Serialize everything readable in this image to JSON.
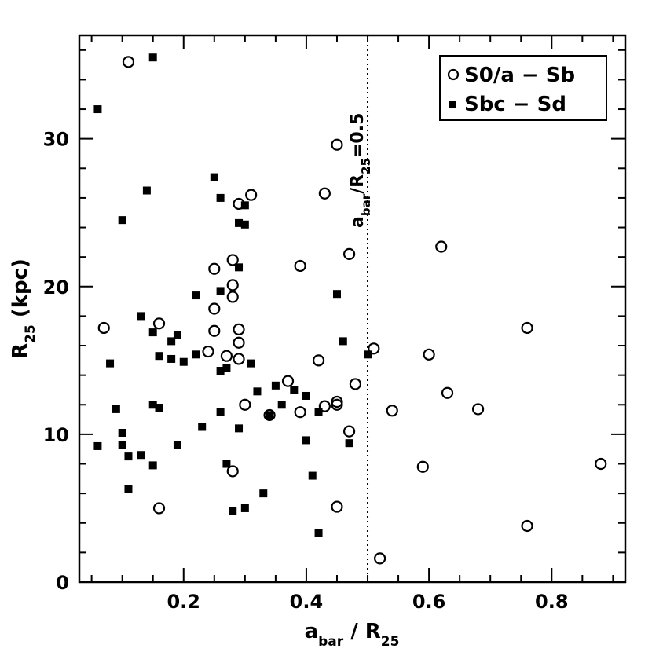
{
  "chart_data": {
    "type": "scatter",
    "title": "",
    "xlabel": {
      "main": "a",
      "sub": "bar",
      "sep": " / R",
      "sub2": "25"
    },
    "ylabel": {
      "main": "R",
      "sub": "25",
      "rest": " (kpc)"
    },
    "xlim": [
      0.03,
      0.92
    ],
    "ylim": [
      0,
      37
    ],
    "xticks": [
      0.2,
      0.4,
      0.6,
      0.8
    ],
    "xtick_labels": [
      "0.2",
      "0.4",
      "0.6",
      "0.8"
    ],
    "yticks": [
      0,
      10,
      20,
      30
    ],
    "ytick_labels": [
      "0",
      "10",
      "20",
      "30"
    ],
    "grid": false,
    "legend_position": "top-right",
    "annotation": {
      "text_main": "a",
      "text_sub": "bar",
      "text_mid": "/R",
      "text_sub2": "25",
      "text_end": "=0.5",
      "x": 0.5
    },
    "series": [
      {
        "name": "S0/a − Sb",
        "marker": "open-circle",
        "color": "#000000",
        "points": [
          [
            0.11,
            35.2
          ],
          [
            0.07,
            17.2
          ],
          [
            0.16,
            17.5
          ],
          [
            0.16,
            5.0
          ],
          [
            0.24,
            15.6
          ],
          [
            0.25,
            21.2
          ],
          [
            0.25,
            18.5
          ],
          [
            0.25,
            17.0
          ],
          [
            0.27,
            15.3
          ],
          [
            0.28,
            21.8
          ],
          [
            0.28,
            20.1
          ],
          [
            0.28,
            19.3
          ],
          [
            0.28,
            7.5
          ],
          [
            0.29,
            25.6
          ],
          [
            0.29,
            17.1
          ],
          [
            0.29,
            16.2
          ],
          [
            0.29,
            15.1
          ],
          [
            0.3,
            12.0
          ],
          [
            0.31,
            26.2
          ],
          [
            0.34,
            11.3
          ],
          [
            0.37,
            13.6
          ],
          [
            0.39,
            21.4
          ],
          [
            0.39,
            11.5
          ],
          [
            0.42,
            15.0
          ],
          [
            0.43,
            26.3
          ],
          [
            0.43,
            11.9
          ],
          [
            0.45,
            29.6
          ],
          [
            0.45,
            12.0
          ],
          [
            0.45,
            12.2
          ],
          [
            0.45,
            5.1
          ],
          [
            0.47,
            22.2
          ],
          [
            0.47,
            10.2
          ],
          [
            0.48,
            13.4
          ],
          [
            0.51,
            15.8
          ],
          [
            0.52,
            1.6
          ],
          [
            0.54,
            11.6
          ],
          [
            0.59,
            7.8
          ],
          [
            0.6,
            15.4
          ],
          [
            0.62,
            22.7
          ],
          [
            0.63,
            12.8
          ],
          [
            0.68,
            11.7
          ],
          [
            0.76,
            17.2
          ],
          [
            0.76,
            3.8
          ],
          [
            0.88,
            8.0
          ]
        ]
      },
      {
        "name": "Sbc − Sd",
        "marker": "filled-square",
        "color": "#000000",
        "points": [
          [
            0.06,
            32.0
          ],
          [
            0.06,
            9.2
          ],
          [
            0.08,
            14.8
          ],
          [
            0.09,
            11.7
          ],
          [
            0.1,
            24.5
          ],
          [
            0.1,
            10.1
          ],
          [
            0.1,
            9.3
          ],
          [
            0.11,
            8.5
          ],
          [
            0.11,
            6.3
          ],
          [
            0.13,
            18.0
          ],
          [
            0.13,
            8.6
          ],
          [
            0.14,
            26.5
          ],
          [
            0.15,
            35.5
          ],
          [
            0.15,
            16.9
          ],
          [
            0.15,
            12.0
          ],
          [
            0.15,
            7.9
          ],
          [
            0.16,
            15.3
          ],
          [
            0.16,
            11.8
          ],
          [
            0.18,
            16.3
          ],
          [
            0.18,
            15.1
          ],
          [
            0.19,
            16.7
          ],
          [
            0.19,
            9.3
          ],
          [
            0.2,
            14.9
          ],
          [
            0.22,
            19.4
          ],
          [
            0.22,
            15.4
          ],
          [
            0.23,
            10.5
          ],
          [
            0.25,
            27.4
          ],
          [
            0.26,
            26.0
          ],
          [
            0.26,
            19.7
          ],
          [
            0.26,
            14.3
          ],
          [
            0.26,
            11.5
          ],
          [
            0.27,
            14.5
          ],
          [
            0.27,
            8.0
          ],
          [
            0.28,
            4.8
          ],
          [
            0.29,
            24.3
          ],
          [
            0.29,
            21.3
          ],
          [
            0.29,
            10.4
          ],
          [
            0.3,
            25.5
          ],
          [
            0.3,
            24.2
          ],
          [
            0.3,
            5.0
          ],
          [
            0.31,
            14.8
          ],
          [
            0.32,
            12.9
          ],
          [
            0.33,
            6.0
          ],
          [
            0.34,
            11.3
          ],
          [
            0.35,
            13.3
          ],
          [
            0.36,
            12.0
          ],
          [
            0.38,
            13.0
          ],
          [
            0.4,
            12.6
          ],
          [
            0.4,
            9.6
          ],
          [
            0.41,
            7.2
          ],
          [
            0.42,
            11.5
          ],
          [
            0.42,
            3.3
          ],
          [
            0.45,
            19.5
          ],
          [
            0.46,
            16.3
          ],
          [
            0.47,
            9.4
          ],
          [
            0.5,
            15.4
          ]
        ]
      }
    ]
  }
}
